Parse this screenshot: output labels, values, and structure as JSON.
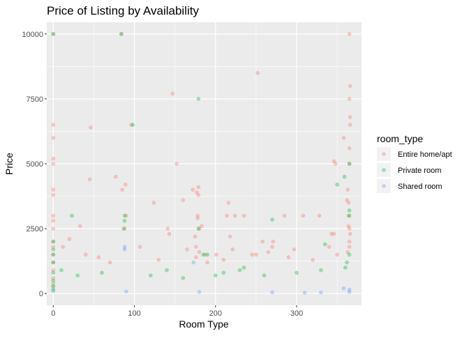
{
  "chart_data": {
    "type": "scatter",
    "title": "Price of Listing by Availability",
    "xlabel": "Room Type",
    "ylabel": "Price",
    "xlim": [
      -8,
      380
    ],
    "ylim": [
      -450,
      10450
    ],
    "x_ticks": [
      0,
      100,
      200,
      300
    ],
    "x_tick_labels": [
      "0",
      "100",
      "200",
      "300"
    ],
    "y_ticks": [
      0,
      2500,
      5000,
      7500,
      10000
    ],
    "y_tick_labels": [
      "0",
      "2500",
      "5000",
      "7500",
      "10000"
    ],
    "grid": true,
    "legend": {
      "title": "room_type",
      "position": "right",
      "entries": [
        "Entire home/apt",
        "Private room",
        "Shared room"
      ]
    },
    "colors": {
      "Entire home/apt": "#F8766D",
      "Private room": "#00BA38",
      "Shared room": "#619CFF"
    },
    "point_alpha": 0.35,
    "series": [
      {
        "name": "Entire home/apt",
        "points": [
          [
            0,
            10000
          ],
          [
            0,
            6500
          ],
          [
            0,
            6000
          ],
          [
            0,
            5200
          ],
          [
            0,
            5000
          ],
          [
            0,
            4000
          ],
          [
            0,
            3800
          ],
          [
            0,
            3000
          ],
          [
            0,
            2800
          ],
          [
            0,
            2500
          ],
          [
            0,
            2000
          ],
          [
            0,
            1800
          ],
          [
            0,
            1500
          ],
          [
            0,
            1200
          ],
          [
            0,
            900
          ],
          [
            0,
            600
          ],
          [
            0,
            400
          ],
          [
            0,
            250
          ],
          [
            46,
            6400
          ],
          [
            96,
            6500
          ],
          [
            85,
            4000
          ],
          [
            89,
            4200
          ],
          [
            77,
            4500
          ],
          [
            45,
            4400
          ],
          [
            147,
            7700
          ],
          [
            152,
            5000
          ],
          [
            160,
            3600
          ],
          [
            124,
            3500
          ],
          [
            141,
            2500
          ],
          [
            143,
            2300
          ],
          [
            84,
            10000
          ],
          [
            88,
            2500
          ],
          [
            90,
            3000
          ],
          [
            172,
            4000
          ],
          [
            177,
            3900
          ],
          [
            179,
            4100
          ],
          [
            179,
            3800
          ],
          [
            178,
            3000
          ],
          [
            178,
            2900
          ],
          [
            180,
            2500
          ],
          [
            183,
            2600
          ],
          [
            175,
            2200
          ],
          [
            176,
            1800
          ],
          [
            180,
            1600
          ],
          [
            176,
            1400
          ],
          [
            187,
            1500
          ],
          [
            190,
            1200
          ],
          [
            201,
            1500
          ],
          [
            216,
            3500
          ],
          [
            214,
            3000
          ],
          [
            218,
            2200
          ],
          [
            224,
            3000
          ],
          [
            235,
            3000
          ],
          [
            221,
            1700
          ],
          [
            252,
            8500
          ],
          [
            250,
            1500
          ],
          [
            258,
            2000
          ],
          [
            265,
            1600
          ],
          [
            271,
            2000
          ],
          [
            270,
            1800
          ],
          [
            285,
            3000
          ],
          [
            297,
            1700
          ],
          [
            308,
            3000
          ],
          [
            328,
            3000
          ],
          [
            346,
            5100
          ],
          [
            348,
            5000
          ],
          [
            343,
            2300
          ],
          [
            346,
            2300
          ],
          [
            340,
            1800
          ],
          [
            358,
            6000
          ],
          [
            365,
            10000
          ],
          [
            365,
            7500
          ],
          [
            366,
            8000
          ],
          [
            366,
            6800
          ],
          [
            366,
            6500
          ],
          [
            365,
            5600
          ],
          [
            365,
            5000
          ],
          [
            363,
            4000
          ],
          [
            364,
            3500
          ],
          [
            362,
            3600
          ],
          [
            364,
            3000
          ],
          [
            364,
            2600
          ],
          [
            365,
            2500
          ],
          [
            366,
            2300
          ],
          [
            365,
            2000
          ],
          [
            365,
            1800
          ],
          [
            363,
            1600
          ],
          [
            33,
            2600
          ],
          [
            20,
            2100
          ],
          [
            12,
            1800
          ],
          [
            40,
            1500
          ],
          [
            56,
            1400
          ],
          [
            70,
            1200
          ],
          [
            107,
            1800
          ],
          [
            130,
            1300
          ],
          [
            165,
            1700
          ],
          [
            210,
            1300
          ],
          [
            245,
            1500
          ],
          [
            290,
            1400
          ],
          [
            320,
            1300
          ],
          [
            350,
            1500
          ]
        ]
      },
      {
        "name": "Private room",
        "points": [
          [
            0,
            10000
          ],
          [
            0,
            2000
          ],
          [
            0,
            1700
          ],
          [
            0,
            1500
          ],
          [
            0,
            1200
          ],
          [
            0,
            800
          ],
          [
            0,
            500
          ],
          [
            0,
            300
          ],
          [
            0,
            150
          ],
          [
            23,
            3000
          ],
          [
            84,
            10000
          ],
          [
            88,
            3000
          ],
          [
            88,
            2800
          ],
          [
            87,
            2500
          ],
          [
            98,
            6500
          ],
          [
            179,
            7500
          ],
          [
            179,
            2500
          ],
          [
            185,
            1500
          ],
          [
            190,
            1500
          ],
          [
            210,
            800
          ],
          [
            235,
            1000
          ],
          [
            270,
            2850
          ],
          [
            335,
            1900
          ],
          [
            350,
            4200
          ],
          [
            359,
            4500
          ],
          [
            365,
            5000
          ],
          [
            365,
            3200
          ],
          [
            365,
            3000
          ],
          [
            365,
            1500
          ],
          [
            362,
            1200
          ],
          [
            360,
            1000
          ],
          [
            10,
            900
          ],
          [
            30,
            700
          ],
          [
            60,
            800
          ],
          [
            120,
            700
          ],
          [
            140,
            900
          ],
          [
            160,
            600
          ],
          [
            200,
            700
          ],
          [
            230,
            900
          ],
          [
            260,
            700
          ],
          [
            300,
            800
          ],
          [
            330,
            900
          ]
        ]
      },
      {
        "name": "Shared room",
        "points": [
          [
            88,
            1800
          ],
          [
            88,
            1700
          ],
          [
            173,
            1200
          ],
          [
            358,
            200
          ],
          [
            0,
            100
          ],
          [
            90,
            80
          ],
          [
            180,
            60
          ],
          [
            270,
            50
          ],
          [
            330,
            40
          ],
          [
            365,
            150
          ],
          [
            365,
            60
          ],
          [
            310,
            30
          ]
        ]
      }
    ]
  }
}
